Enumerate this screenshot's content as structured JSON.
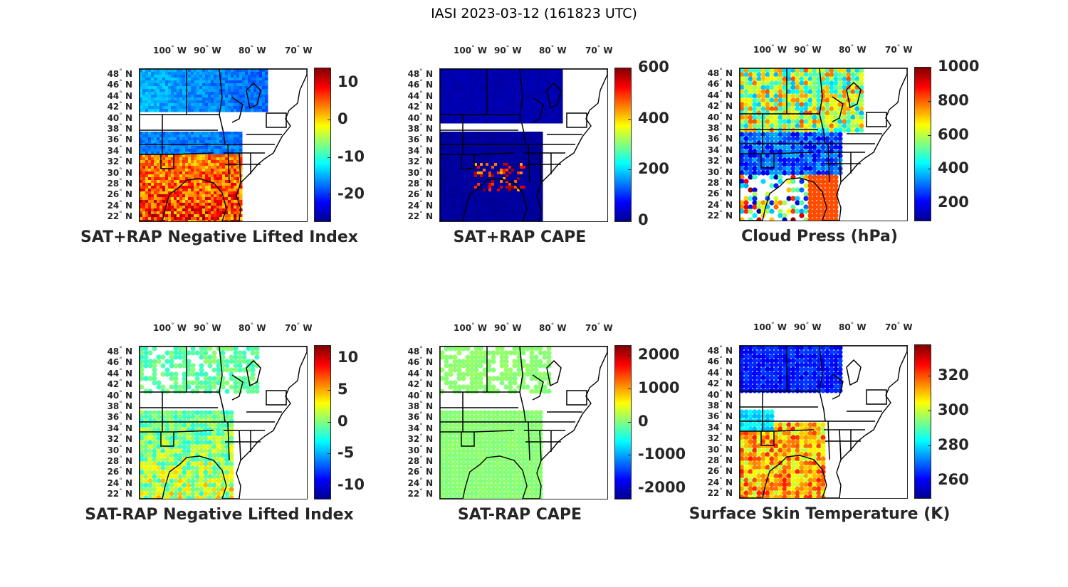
{
  "figure": {
    "title": "IASI 2023-03-12 (161823 UTC)"
  },
  "axes": {
    "lon_labels": [
      {
        "value": "100",
        "hemi": "W"
      },
      {
        "value": "90",
        "hemi": "W"
      },
      {
        "value": "80",
        "hemi": "W"
      },
      {
        "value": "70",
        "hemi": "W"
      }
    ],
    "lat_labels": [
      {
        "value": "48",
        "hemi": "N"
      },
      {
        "value": "46",
        "hemi": "N"
      },
      {
        "value": "44",
        "hemi": "N"
      },
      {
        "value": "42",
        "hemi": "N"
      },
      {
        "value": "40",
        "hemi": "N"
      },
      {
        "value": "38",
        "hemi": "N"
      },
      {
        "value": "36",
        "hemi": "N"
      },
      {
        "value": "34",
        "hemi": "N"
      },
      {
        "value": "32",
        "hemi": "N"
      },
      {
        "value": "30",
        "hemi": "N"
      },
      {
        "value": "28",
        "hemi": "N"
      },
      {
        "value": "26",
        "hemi": "N"
      },
      {
        "value": "24",
        "hemi": "N"
      },
      {
        "value": "22",
        "hemi": "N"
      }
    ],
    "degree_symbol": "°"
  },
  "colormap": [
    "#00008f",
    "#0000ff",
    "#0080ff",
    "#00ffff",
    "#80ff80",
    "#ffff00",
    "#ff8000",
    "#ff0000",
    "#800000"
  ],
  "panels": [
    {
      "id": "sat-rap-neg-li",
      "title": "SAT+RAP Negative Lifted Index",
      "colorbar": {
        "ticks": [
          "10",
          "0",
          "-10",
          "-20"
        ],
        "range": [
          -27,
          14
        ],
        "tick_values": [
          10,
          0,
          -10,
          -20
        ]
      }
    },
    {
      "id": "sat-rap-cape",
      "title": "SAT+RAP CAPE",
      "colorbar": {
        "ticks": [
          "600",
          "400",
          "200",
          "0"
        ],
        "range": [
          0,
          600
        ],
        "tick_values": [
          600,
          400,
          200,
          0
        ]
      }
    },
    {
      "id": "cloud-press",
      "title": "Cloud Press (hPa)",
      "colorbar": {
        "ticks": [
          "1000",
          "800",
          "600",
          "400",
          "200"
        ],
        "range": [
          100,
          1000
        ],
        "tick_values": [
          1000,
          800,
          600,
          400,
          200
        ]
      }
    },
    {
      "id": "sat-minus-rap-neg-li",
      "title": "SAT-RAP Negative Lifted Index",
      "colorbar": {
        "ticks": [
          "10",
          "5",
          "0",
          "-5",
          "-10"
        ],
        "range": [
          -12,
          12
        ],
        "tick_values": [
          10,
          5,
          0,
          -5,
          -10
        ]
      }
    },
    {
      "id": "sat-minus-rap-cape",
      "title": "SAT-RAP CAPE",
      "colorbar": {
        "ticks": [
          "2000",
          "1000",
          "0",
          "-1000",
          "-2000"
        ],
        "range": [
          -2300,
          2300
        ],
        "tick_values": [
          2000,
          1000,
          0,
          -1000,
          -2000
        ]
      }
    },
    {
      "id": "surface-skin-temp",
      "title": "Surface Skin Temperature (K)",
      "colorbar": {
        "ticks": [
          "320",
          "300",
          "280",
          "260"
        ],
        "range": [
          250,
          338
        ],
        "tick_values": [
          320,
          300,
          280,
          260
        ]
      }
    }
  ]
}
